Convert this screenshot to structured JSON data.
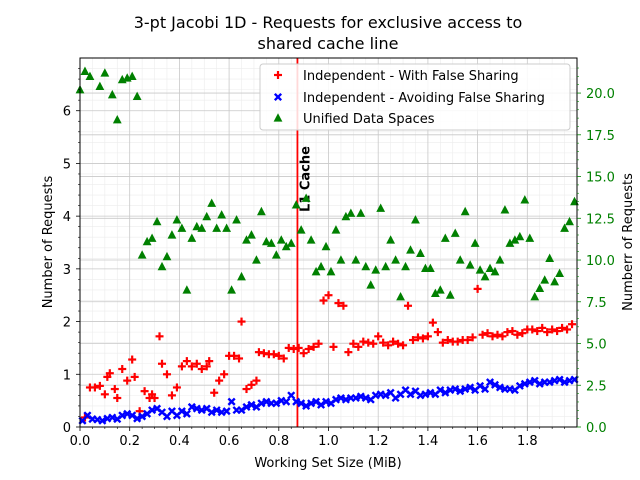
{
  "chart_data": {
    "type": "scatter",
    "title_lines": [
      "3-pt Jacobi 1D - Requests for exclusive access to",
      "shared cache line"
    ],
    "xlabel": "Working Set Size (MiB)",
    "ylabel": "Number of Requests",
    "y2label": "Numberr of Requests",
    "xlim": [
      0.0,
      2.0
    ],
    "ylim": [
      0,
      7
    ],
    "y2lim": [
      0,
      22.1
    ],
    "x_ticks": [
      "0.0",
      "0.2",
      "0.4",
      "0.6",
      "0.8",
      "1.0",
      "1.2",
      "1.4",
      "1.6",
      "1.8"
    ],
    "y_ticks": [
      "0",
      "1",
      "2",
      "3",
      "4",
      "5",
      "6"
    ],
    "y2_ticks": [
      "0.0",
      "2.5",
      "5.0",
      "7.5",
      "10.0",
      "12.5",
      "15.0",
      "17.5",
      "20.0"
    ],
    "grid": true,
    "legend_position": "top-right",
    "vline": {
      "x": 0.875,
      "label": "L1 Cache",
      "color": "#ff0000"
    },
    "colors": {
      "red": "#ff0000",
      "blue": "#0000ff",
      "green": "#008000",
      "right_axis": "#008000"
    },
    "series": [
      {
        "name": "Independent - With False Sharing",
        "marker": "plus",
        "axis": "left",
        "color": "#ff0000",
        "points": [
          [
            0.02,
            0.18
          ],
          [
            0.04,
            0.75
          ],
          [
            0.06,
            0.75
          ],
          [
            0.08,
            0.78
          ],
          [
            0.1,
            0.62
          ],
          [
            0.11,
            0.95
          ],
          [
            0.12,
            1.02
          ],
          [
            0.14,
            0.72
          ],
          [
            0.15,
            0.55
          ],
          [
            0.17,
            1.1
          ],
          [
            0.19,
            0.88
          ],
          [
            0.21,
            1.28
          ],
          [
            0.22,
            0.95
          ],
          [
            0.24,
            0.3
          ],
          [
            0.26,
            0.68
          ],
          [
            0.28,
            0.55
          ],
          [
            0.29,
            0.62
          ],
          [
            0.3,
            0.55
          ],
          [
            0.32,
            1.72
          ],
          [
            0.33,
            1.2
          ],
          [
            0.35,
            1.0
          ],
          [
            0.37,
            0.6
          ],
          [
            0.39,
            0.75
          ],
          [
            0.41,
            1.15
          ],
          [
            0.43,
            1.25
          ],
          [
            0.45,
            1.15
          ],
          [
            0.47,
            1.2
          ],
          [
            0.49,
            1.1
          ],
          [
            0.51,
            1.15
          ],
          [
            0.52,
            1.25
          ],
          [
            0.54,
            0.65
          ],
          [
            0.56,
            0.88
          ],
          [
            0.58,
            1.0
          ],
          [
            0.6,
            1.35
          ],
          [
            0.62,
            1.35
          ],
          [
            0.64,
            1.3
          ],
          [
            0.65,
            2.0
          ],
          [
            0.67,
            0.72
          ],
          [
            0.69,
            0.8
          ],
          [
            0.71,
            0.88
          ],
          [
            0.72,
            1.42
          ],
          [
            0.74,
            1.4
          ],
          [
            0.76,
            1.38
          ],
          [
            0.78,
            1.38
          ],
          [
            0.8,
            1.35
          ],
          [
            0.82,
            1.3
          ],
          [
            0.84,
            1.5
          ],
          [
            0.86,
            1.48
          ],
          [
            0.88,
            1.5
          ],
          [
            0.9,
            1.4
          ],
          [
            0.92,
            1.48
          ],
          [
            0.94,
            1.52
          ],
          [
            0.96,
            1.58
          ],
          [
            0.98,
            2.4
          ],
          [
            1.0,
            2.5
          ],
          [
            1.02,
            1.52
          ],
          [
            1.04,
            2.35
          ],
          [
            1.06,
            2.3
          ],
          [
            1.08,
            1.42
          ],
          [
            1.1,
            1.58
          ],
          [
            1.12,
            1.52
          ],
          [
            1.14,
            1.62
          ],
          [
            1.16,
            1.6
          ],
          [
            1.18,
            1.58
          ],
          [
            1.2,
            1.72
          ],
          [
            1.22,
            1.6
          ],
          [
            1.24,
            1.55
          ],
          [
            1.26,
            1.62
          ],
          [
            1.28,
            1.58
          ],
          [
            1.3,
            1.55
          ],
          [
            1.32,
            2.3
          ],
          [
            1.34,
            1.65
          ],
          [
            1.36,
            1.7
          ],
          [
            1.38,
            1.68
          ],
          [
            1.4,
            1.72
          ],
          [
            1.42,
            1.98
          ],
          [
            1.44,
            1.8
          ],
          [
            1.46,
            1.6
          ],
          [
            1.48,
            1.65
          ],
          [
            1.5,
            1.62
          ],
          [
            1.52,
            1.62
          ],
          [
            1.54,
            1.65
          ],
          [
            1.56,
            1.65
          ],
          [
            1.58,
            1.7
          ],
          [
            1.6,
            2.62
          ],
          [
            1.62,
            1.75
          ],
          [
            1.64,
            1.78
          ],
          [
            1.66,
            1.72
          ],
          [
            1.68,
            1.75
          ],
          [
            1.7,
            1.72
          ],
          [
            1.72,
            1.8
          ],
          [
            1.74,
            1.82
          ],
          [
            1.76,
            1.75
          ],
          [
            1.78,
            1.78
          ],
          [
            1.8,
            1.85
          ],
          [
            1.82,
            1.85
          ],
          [
            1.84,
            1.82
          ],
          [
            1.86,
            1.88
          ],
          [
            1.88,
            1.8
          ],
          [
            1.9,
            1.85
          ],
          [
            1.92,
            1.82
          ],
          [
            1.94,
            1.88
          ],
          [
            1.96,
            1.85
          ],
          [
            1.98,
            1.95
          ]
        ]
      },
      {
        "name": "Independent - Avoiding False Sharing",
        "marker": "x",
        "axis": "left",
        "color": "#0000ff",
        "points": [
          [
            0.01,
            0.12
          ],
          [
            0.03,
            0.22
          ],
          [
            0.05,
            0.15
          ],
          [
            0.07,
            0.14
          ],
          [
            0.09,
            0.12
          ],
          [
            0.11,
            0.16
          ],
          [
            0.13,
            0.18
          ],
          [
            0.15,
            0.15
          ],
          [
            0.17,
            0.22
          ],
          [
            0.19,
            0.25
          ],
          [
            0.21,
            0.22
          ],
          [
            0.23,
            0.16
          ],
          [
            0.25,
            0.2
          ],
          [
            0.27,
            0.25
          ],
          [
            0.29,
            0.32
          ],
          [
            0.31,
            0.35
          ],
          [
            0.33,
            0.28
          ],
          [
            0.35,
            0.2
          ],
          [
            0.37,
            0.3
          ],
          [
            0.39,
            0.22
          ],
          [
            0.41,
            0.3
          ],
          [
            0.43,
            0.25
          ],
          [
            0.45,
            0.38
          ],
          [
            0.47,
            0.35
          ],
          [
            0.49,
            0.32
          ],
          [
            0.51,
            0.35
          ],
          [
            0.53,
            0.28
          ],
          [
            0.55,
            0.32
          ],
          [
            0.57,
            0.28
          ],
          [
            0.59,
            0.3
          ],
          [
            0.61,
            0.48
          ],
          [
            0.63,
            0.32
          ],
          [
            0.65,
            0.32
          ],
          [
            0.67,
            0.38
          ],
          [
            0.69,
            0.42
          ],
          [
            0.71,
            0.38
          ],
          [
            0.73,
            0.45
          ],
          [
            0.75,
            0.48
          ],
          [
            0.77,
            0.45
          ],
          [
            0.79,
            0.45
          ],
          [
            0.81,
            0.5
          ],
          [
            0.83,
            0.48
          ],
          [
            0.85,
            0.6
          ],
          [
            0.87,
            0.48
          ],
          [
            0.89,
            0.45
          ],
          [
            0.91,
            0.4
          ],
          [
            0.93,
            0.45
          ],
          [
            0.95,
            0.48
          ],
          [
            0.97,
            0.42
          ],
          [
            0.99,
            0.48
          ],
          [
            1.01,
            0.45
          ],
          [
            1.03,
            0.52
          ],
          [
            1.05,
            0.55
          ],
          [
            1.07,
            0.52
          ],
          [
            1.09,
            0.55
          ],
          [
            1.11,
            0.55
          ],
          [
            1.13,
            0.58
          ],
          [
            1.15,
            0.55
          ],
          [
            1.17,
            0.52
          ],
          [
            1.19,
            0.6
          ],
          [
            1.21,
            0.62
          ],
          [
            1.23,
            0.6
          ],
          [
            1.25,
            0.65
          ],
          [
            1.27,
            0.55
          ],
          [
            1.29,
            0.62
          ],
          [
            1.31,
            0.7
          ],
          [
            1.33,
            0.62
          ],
          [
            1.35,
            0.68
          ],
          [
            1.37,
            0.6
          ],
          [
            1.39,
            0.62
          ],
          [
            1.41,
            0.65
          ],
          [
            1.43,
            0.62
          ],
          [
            1.45,
            0.7
          ],
          [
            1.47,
            0.65
          ],
          [
            1.49,
            0.7
          ],
          [
            1.51,
            0.72
          ],
          [
            1.53,
            0.68
          ],
          [
            1.55,
            0.72
          ],
          [
            1.57,
            0.75
          ],
          [
            1.59,
            0.7
          ],
          [
            1.61,
            0.78
          ],
          [
            1.63,
            0.72
          ],
          [
            1.65,
            0.85
          ],
          [
            1.67,
            0.8
          ],
          [
            1.69,
            0.75
          ],
          [
            1.71,
            0.72
          ],
          [
            1.73,
            0.72
          ],
          [
            1.75,
            0.7
          ],
          [
            1.77,
            0.78
          ],
          [
            1.79,
            0.82
          ],
          [
            1.81,
            0.85
          ],
          [
            1.83,
            0.88
          ],
          [
            1.85,
            0.82
          ],
          [
            1.87,
            0.85
          ],
          [
            1.89,
            0.85
          ],
          [
            1.91,
            0.88
          ],
          [
            1.93,
            0.9
          ],
          [
            1.95,
            0.85
          ],
          [
            1.97,
            0.88
          ],
          [
            1.99,
            0.9
          ]
        ]
      },
      {
        "name": "Unified Data Spaces",
        "marker": "triangle",
        "axis": "right",
        "color": "#008000",
        "points": [
          [
            0.0,
            20.2
          ],
          [
            0.02,
            21.3
          ],
          [
            0.04,
            21.0
          ],
          [
            0.08,
            20.4
          ],
          [
            0.1,
            21.2
          ],
          [
            0.13,
            19.9
          ],
          [
            0.15,
            18.4
          ],
          [
            0.17,
            20.8
          ],
          [
            0.19,
            20.9
          ],
          [
            0.21,
            21.0
          ],
          [
            0.23,
            19.8
          ],
          [
            0.25,
            10.3
          ],
          [
            0.27,
            11.1
          ],
          [
            0.29,
            11.3
          ],
          [
            0.31,
            12.3
          ],
          [
            0.33,
            9.6
          ],
          [
            0.35,
            10.2
          ],
          [
            0.37,
            11.5
          ],
          [
            0.39,
            12.4
          ],
          [
            0.41,
            11.9
          ],
          [
            0.43,
            8.2
          ],
          [
            0.45,
            11.3
          ],
          [
            0.47,
            12.0
          ],
          [
            0.49,
            11.9
          ],
          [
            0.51,
            12.6
          ],
          [
            0.53,
            13.4
          ],
          [
            0.55,
            11.9
          ],
          [
            0.57,
            12.7
          ],
          [
            0.59,
            11.9
          ],
          [
            0.61,
            8.2
          ],
          [
            0.63,
            12.4
          ],
          [
            0.65,
            9.0
          ],
          [
            0.67,
            11.2
          ],
          [
            0.69,
            11.5
          ],
          [
            0.71,
            10.0
          ],
          [
            0.73,
            12.9
          ],
          [
            0.75,
            11.1
          ],
          [
            0.77,
            11.0
          ],
          [
            0.79,
            10.3
          ],
          [
            0.81,
            11.2
          ],
          [
            0.83,
            10.8
          ],
          [
            0.85,
            11.0
          ],
          [
            0.87,
            13.3
          ],
          [
            0.89,
            11.8
          ],
          [
            0.91,
            13.7
          ],
          [
            0.93,
            11.2
          ],
          [
            0.95,
            9.3
          ],
          [
            0.97,
            9.6
          ],
          [
            0.99,
            10.8
          ],
          [
            1.01,
            9.3
          ],
          [
            1.03,
            11.8
          ],
          [
            1.05,
            10.0
          ],
          [
            1.07,
            12.6
          ],
          [
            1.09,
            12.8
          ],
          [
            1.11,
            10.0
          ],
          [
            1.13,
            12.8
          ],
          [
            1.15,
            9.6
          ],
          [
            1.17,
            8.5
          ],
          [
            1.19,
            9.4
          ],
          [
            1.21,
            13.1
          ],
          [
            1.23,
            9.6
          ],
          [
            1.25,
            11.2
          ],
          [
            1.27,
            10.0
          ],
          [
            1.29,
            7.8
          ],
          [
            1.31,
            9.6
          ],
          [
            1.33,
            10.6
          ],
          [
            1.35,
            12.4
          ],
          [
            1.37,
            10.4
          ],
          [
            1.39,
            9.5
          ],
          [
            1.41,
            9.5
          ],
          [
            1.43,
            8.0
          ],
          [
            1.45,
            8.2
          ],
          [
            1.47,
            11.3
          ],
          [
            1.49,
            7.9
          ],
          [
            1.51,
            11.6
          ],
          [
            1.53,
            10.0
          ],
          [
            1.55,
            12.9
          ],
          [
            1.57,
            9.7
          ],
          [
            1.59,
            11.0
          ],
          [
            1.61,
            9.4
          ],
          [
            1.63,
            9.0
          ],
          [
            1.65,
            9.5
          ],
          [
            1.67,
            9.3
          ],
          [
            1.69,
            10.0
          ],
          [
            1.71,
            13.0
          ],
          [
            1.73,
            11.0
          ],
          [
            1.75,
            11.2
          ],
          [
            1.77,
            11.4
          ],
          [
            1.79,
            13.6
          ],
          [
            1.81,
            11.3
          ],
          [
            1.83,
            7.8
          ],
          [
            1.85,
            8.3
          ],
          [
            1.87,
            8.8
          ],
          [
            1.89,
            10.1
          ],
          [
            1.91,
            8.7
          ],
          [
            1.93,
            9.2
          ],
          [
            1.95,
            11.9
          ],
          [
            1.97,
            12.3
          ],
          [
            1.99,
            13.5
          ]
        ]
      }
    ]
  }
}
